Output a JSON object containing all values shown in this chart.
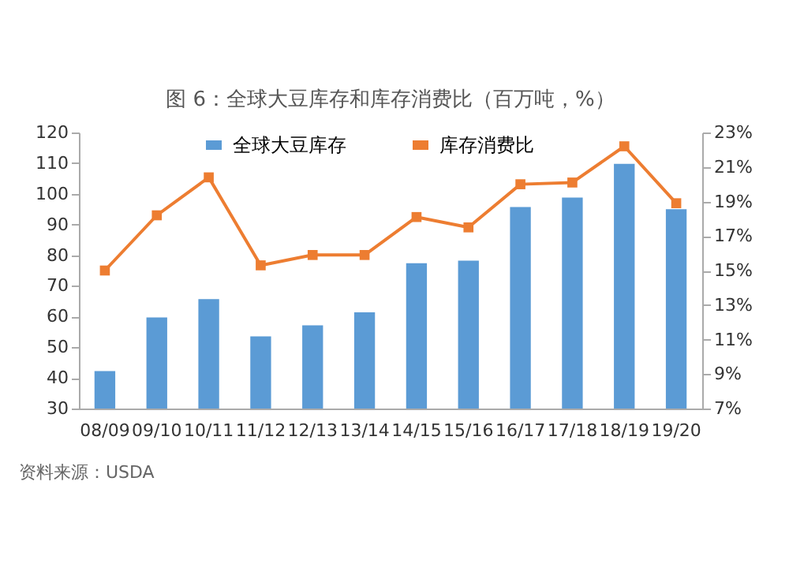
{
  "chart_data": {
    "type": "bar",
    "title": "图 6：全球大豆库存和库存消费比（百万吨，%）",
    "categories": [
      "08/09",
      "09/10",
      "10/11",
      "11/12",
      "12/13",
      "13/14",
      "14/15",
      "15/16",
      "16/17",
      "17/18",
      "18/19",
      "19/20"
    ],
    "series": [
      {
        "name": "全球大豆库存",
        "color": "#5b9bd5",
        "values": [
          42.2,
          59.7,
          65.7,
          53.5,
          57.1,
          61.4,
          77.4,
          78.2,
          95.7,
          98.8,
          109.8,
          95.0
        ]
      },
      {
        "name": "库存消费比",
        "type": "line",
        "axis": "y2",
        "color": "#ed7d31",
        "values": [
          15.0,
          18.2,
          20.4,
          15.3,
          15.9,
          15.9,
          18.1,
          17.5,
          20.0,
          20.1,
          22.2,
          18.9
        ]
      }
    ],
    "ylim": [
      30,
      120
    ],
    "yticks": [
      30,
      40,
      50,
      60,
      70,
      80,
      90,
      100,
      110,
      120
    ],
    "y2lim": [
      7,
      23
    ],
    "y2ticks": [
      {
        "value": 7,
        "label": "7%"
      },
      {
        "value": 9,
        "label": "9%"
      },
      {
        "value": 11,
        "label": "11%"
      },
      {
        "value": 13,
        "label": "13%"
      },
      {
        "value": 15,
        "label": "15%"
      },
      {
        "value": 17,
        "label": "17%"
      },
      {
        "value": 19,
        "label": "19%"
      },
      {
        "value": 21,
        "label": "21%"
      },
      {
        "value": 23,
        "label": "23%"
      }
    ],
    "marker": "square",
    "legend": "top",
    "grid": false,
    "annotations": [
      "资料来源：USDA"
    ]
  }
}
